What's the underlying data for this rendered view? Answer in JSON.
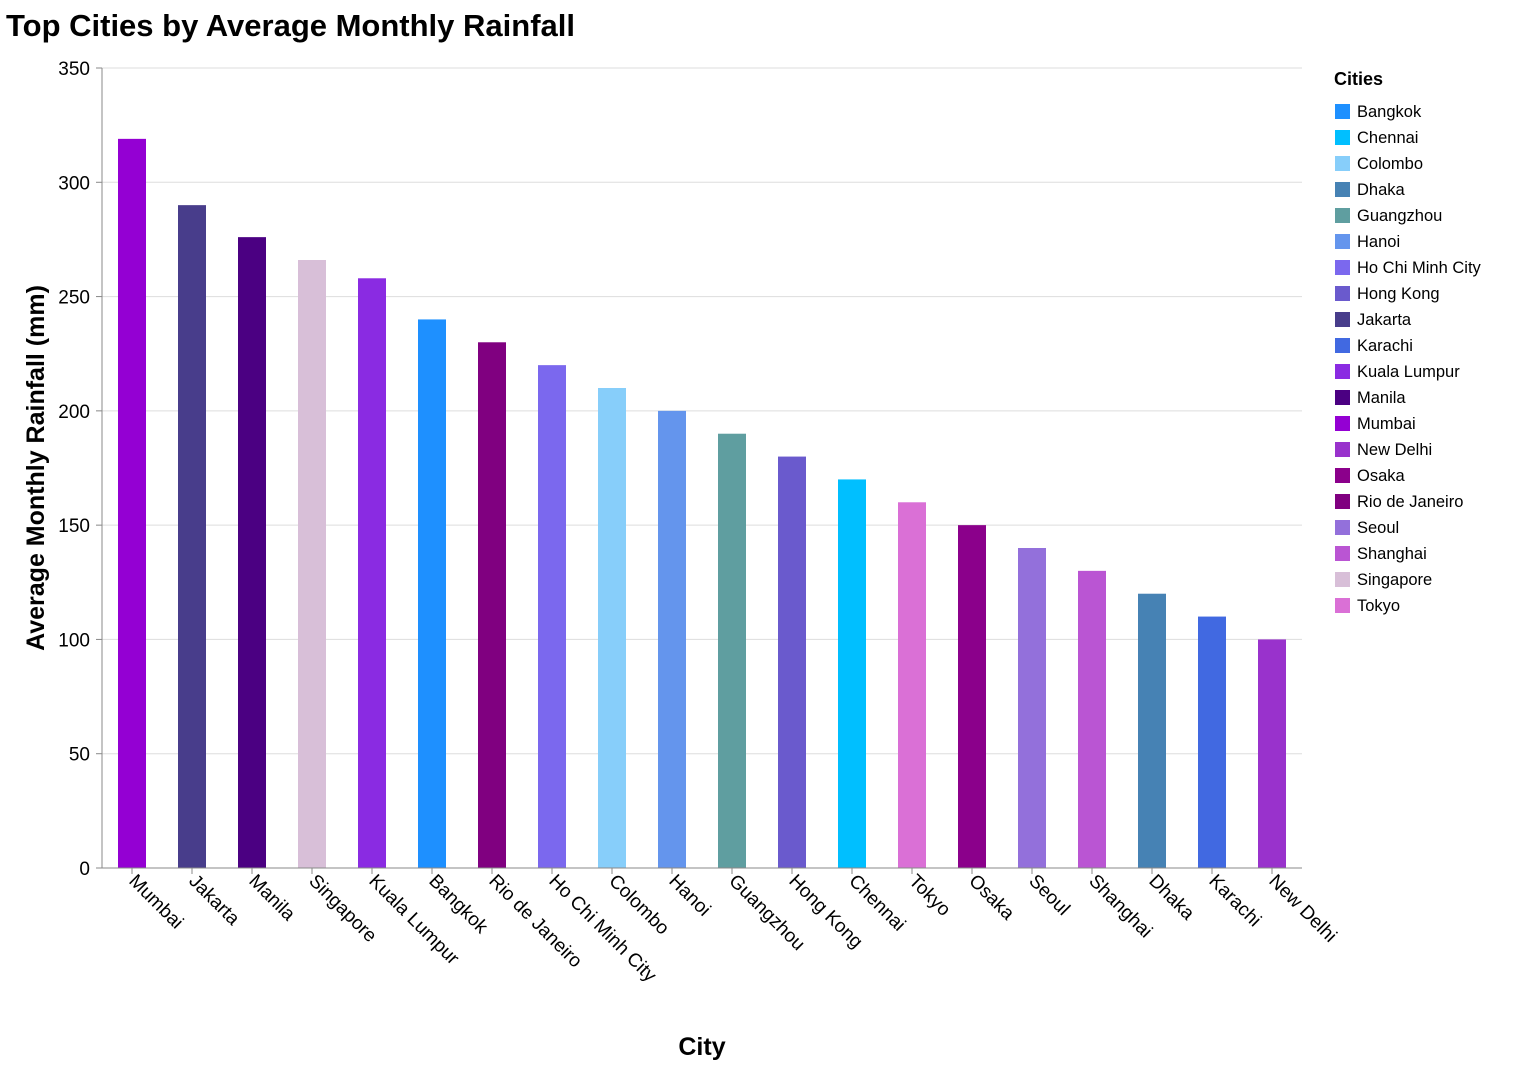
{
  "chart_data": {
    "type": "bar",
    "title": "Top Cities by Average Monthly Rainfall",
    "xlabel": "City",
    "ylabel": "Average Monthly Rainfall (mm)",
    "ylim": [
      0,
      350
    ],
    "yticks": [
      0,
      50,
      100,
      150,
      200,
      250,
      300,
      350
    ],
    "grid": true,
    "legend": {
      "title": "Cities",
      "placement": "right"
    },
    "categories": [
      "Mumbai",
      "Jakarta",
      "Manila",
      "Singapore",
      "Kuala Lumpur",
      "Bangkok",
      "Rio de Janeiro",
      "Ho Chi Minh City",
      "Colombo",
      "Hanoi",
      "Guangzhou",
      "Hong Kong",
      "Chennai",
      "Tokyo",
      "Osaka",
      "Seoul",
      "Shanghai",
      "Dhaka",
      "Karachi",
      "New Delhi"
    ],
    "values": [
      319,
      290,
      276,
      266,
      258,
      240,
      230,
      220,
      210,
      200,
      190,
      180,
      170,
      160,
      150,
      140,
      130,
      120,
      110,
      100
    ],
    "legend_entries": [
      "Bangkok",
      "Chennai",
      "Colombo",
      "Dhaka",
      "Guangzhou",
      "Hanoi",
      "Ho Chi Minh City",
      "Hong Kong",
      "Jakarta",
      "Karachi",
      "Kuala Lumpur",
      "Manila",
      "Mumbai",
      "New Delhi",
      "Osaka",
      "Rio de Janeiro",
      "Seoul",
      "Shanghai",
      "Singapore",
      "Tokyo"
    ],
    "colors": {
      "Bangkok": "#1e90ff",
      "Chennai": "#00bfff",
      "Colombo": "#87cefa",
      "Dhaka": "#4682b4",
      "Guangzhou": "#5f9ea0",
      "Hanoi": "#6495ed",
      "Ho Chi Minh City": "#7b68ee",
      "Hong Kong": "#6a5acd",
      "Jakarta": "#483d8b",
      "Karachi": "#4169e1",
      "Kuala Lumpur": "#8a2be2",
      "Manila": "#4b0082",
      "Mumbai": "#9400d3",
      "New Delhi": "#9932cc",
      "Osaka": "#8b008b",
      "Rio de Janeiro": "#800080",
      "Seoul": "#9370db",
      "Shanghai": "#ba55d3",
      "Singapore": "#d8bfd8",
      "Tokyo": "#da70d6"
    }
  }
}
